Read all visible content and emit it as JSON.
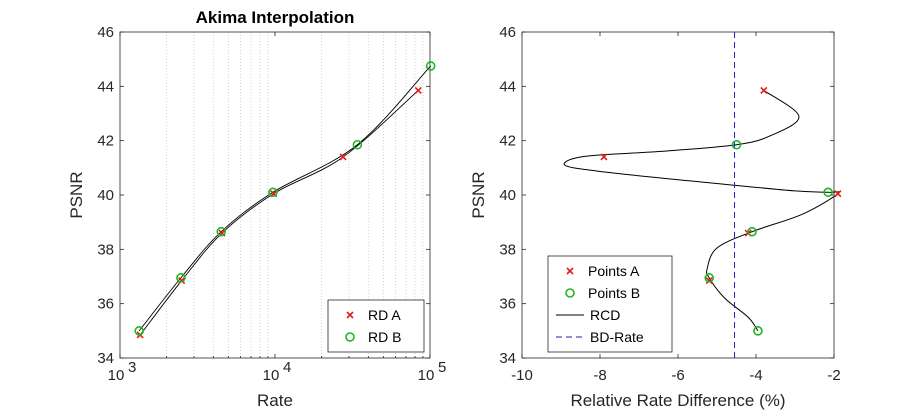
{
  "chart_data": [
    {
      "type": "line",
      "title": "Akima Interpolation",
      "xlabel": "Rate",
      "ylabel": "PSNR",
      "xscale": "log",
      "xlim": [
        1000,
        100000
      ],
      "ylim": [
        34,
        46
      ],
      "xticks": [
        1000,
        10000,
        100000
      ],
      "xtick_labels": [
        {
          "base": "10",
          "exp": "3"
        },
        {
          "base": "10",
          "exp": "4"
        },
        {
          "base": "10",
          "exp": "5"
        }
      ],
      "yticks": [
        34,
        36,
        38,
        40,
        42,
        44,
        46
      ],
      "ytick_labels": [
        "34",
        "36",
        "38",
        "40",
        "42",
        "44",
        "46"
      ],
      "grid": "minor x dotted",
      "legend_position": "bottom-right",
      "series": [
        {
          "name": "RD A",
          "marker": "x",
          "color": "#e41a1c",
          "x": [
            1350,
            2500,
            4550,
            9800,
            27500,
            84000
          ],
          "y": [
            34.85,
            36.85,
            38.6,
            40.05,
            41.4,
            43.85
          ]
        },
        {
          "name": "RD B",
          "marker": "o",
          "color": "#1fb51f",
          "x": [
            1330,
            2470,
            4500,
            9700,
            34000,
            101000
          ],
          "y": [
            35.0,
            36.95,
            38.65,
            40.1,
            41.85,
            44.75
          ]
        }
      ]
    },
    {
      "type": "line",
      "title": "",
      "xlabel": "Relative Rate Difference (%)",
      "ylabel": "PSNR",
      "xlim": [
        -10,
        -2
      ],
      "ylim": [
        34,
        46
      ],
      "xticks": [
        -10,
        -8,
        -6,
        -4,
        -2
      ],
      "xtick_labels": [
        "-10",
        "-8",
        "-6",
        "-4",
        "-2"
      ],
      "yticks": [
        34,
        36,
        38,
        40,
        42,
        44,
        46
      ],
      "ytick_labels": [
        "34",
        "36",
        "38",
        "40",
        "42",
        "44",
        "46"
      ],
      "grid": "off",
      "legend_position": "bottom-left",
      "series": [
        {
          "name": "Points A",
          "marker": "x",
          "color": "#e41a1c",
          "x": [
            -3.8,
            -7.9,
            -1.9,
            -4.2,
            -5.2
          ],
          "y": [
            43.85,
            41.4,
            40.05,
            38.6,
            36.85
          ]
        },
        {
          "name": "Points B",
          "marker": "o",
          "color": "#1fb51f",
          "x": [
            -4.5,
            -2.15,
            -4.1,
            -5.2,
            -3.95
          ],
          "y": [
            41.85,
            40.1,
            38.65,
            36.95,
            35.0
          ]
        },
        {
          "name": "RCD",
          "color": "#000000",
          "x": [
            -3.8,
            -2.9,
            -3.6,
            -4.5,
            -6.5,
            -8.4,
            -8.9,
            -7.9,
            -5.2,
            -3.0,
            -2.15,
            -1.9,
            -2.8,
            -4.1,
            -5.0,
            -5.25,
            -5.2,
            -4.8,
            -4.2,
            -3.95
          ],
          "y": [
            43.85,
            42.9,
            42.2,
            41.85,
            41.6,
            41.42,
            41.1,
            40.85,
            40.45,
            40.15,
            40.1,
            40.05,
            39.3,
            38.65,
            38.05,
            37.3,
            36.95,
            36.2,
            35.5,
            35.0
          ]
        },
        {
          "name": "BD-Rate",
          "color": "#1f1fbf",
          "dashed": true,
          "x": [
            -4.55,
            -4.55
          ],
          "y": [
            34,
            46
          ]
        }
      ]
    }
  ]
}
